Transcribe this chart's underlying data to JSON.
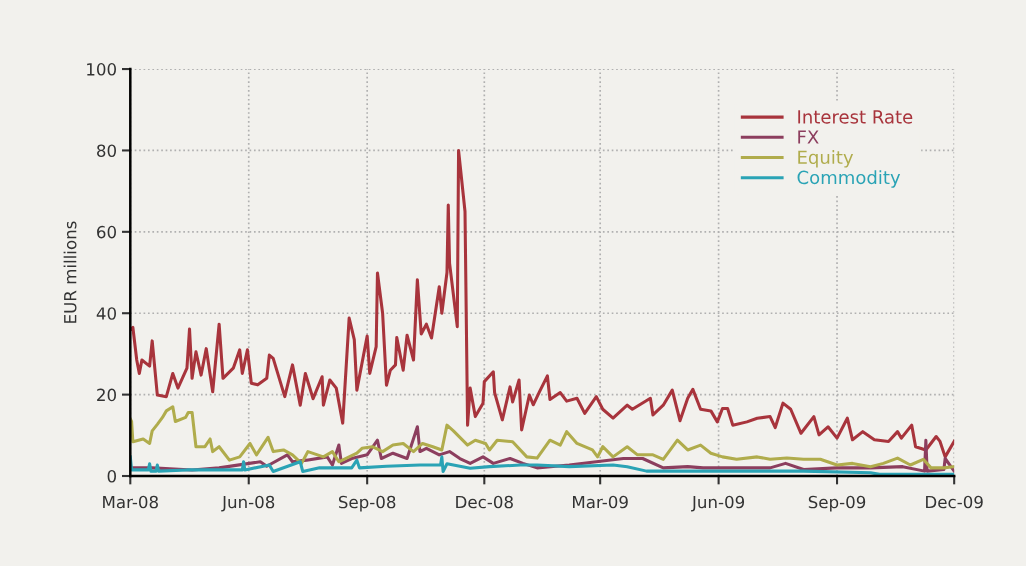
{
  "chart_data": {
    "type": "line",
    "ylabel": "EUR millions",
    "xlim": [
      "2008-03-01",
      "2009-12-01"
    ],
    "xticks": [
      {
        "value": "2008-03-01",
        "label": "Mar-08"
      },
      {
        "value": "2008-06-01",
        "label": "Jun-08"
      },
      {
        "value": "2008-09-01",
        "label": "Sep-08"
      },
      {
        "value": "2008-12-01",
        "label": "Dec-08"
      },
      {
        "value": "2009-03-01",
        "label": "Mar-09"
      },
      {
        "value": "2009-06-01",
        "label": "Jun-09"
      },
      {
        "value": "2009-09-01",
        "label": "Sep-09"
      },
      {
        "value": "2009-12-01",
        "label": "Dec-09"
      }
    ],
    "ylim": [
      0,
      100
    ],
    "yticks": [
      0,
      20,
      40,
      60,
      80,
      100
    ],
    "grid": true,
    "legend": "top right",
    "marker": "none",
    "line_style": "solid",
    "series": [
      {
        "name": "Interest Rate",
        "color": "#a8343c",
        "x": [
          "2008-03-01",
          "2008-03-03",
          "2008-03-06",
          "2008-03-08",
          "2008-03-10",
          "2008-03-16",
          "2008-03-18",
          "2008-03-22",
          "2008-03-29",
          "2008-04-03",
          "2008-04-07",
          "2008-04-14",
          "2008-04-16",
          "2008-04-18",
          "2008-04-21",
          "2008-04-25",
          "2008-04-29",
          "2008-05-04",
          "2008-05-09",
          "2008-05-12",
          "2008-05-20",
          "2008-05-25",
          "2008-05-27",
          "2008-05-31",
          "2008-06-03",
          "2008-06-08",
          "2008-06-15",
          "2008-06-17",
          "2008-06-20",
          "2008-06-29",
          "2008-07-05",
          "2008-07-11",
          "2008-07-15",
          "2008-07-21",
          "2008-07-28",
          "2008-07-29",
          "2008-08-03",
          "2008-08-08",
          "2008-08-13",
          "2008-08-18",
          "2008-08-22",
          "2008-08-24",
          "2008-09-01",
          "2008-09-03",
          "2008-09-08",
          "2008-09-09",
          "2008-09-13",
          "2008-09-16",
          "2008-09-19",
          "2008-09-23",
          "2008-09-24",
          "2008-09-29",
          "2008-10-02",
          "2008-10-07",
          "2008-10-10",
          "2008-10-13",
          "2008-10-17",
          "2008-10-21",
          "2008-10-27",
          "2008-10-29",
          "2008-11-02",
          "2008-11-03",
          "2008-11-04",
          "2008-11-10",
          "2008-11-11",
          "2008-11-16",
          "2008-11-18",
          "2008-11-20",
          "2008-11-24",
          "2008-11-30",
          "2008-12-01",
          "2008-12-08",
          "2008-12-09",
          "2008-12-15",
          "2008-12-21",
          "2008-12-23",
          "2008-12-28",
          "2008-12-30",
          "2009-01-05",
          "2009-01-08",
          "2009-01-13",
          "2009-01-19",
          "2009-01-21",
          "2009-01-29",
          "2009-02-03",
          "2009-02-11",
          "2009-02-17",
          "2009-02-26",
          "2009-03-03",
          "2009-03-11",
          "2009-03-22",
          "2009-03-26",
          "2009-04-09",
          "2009-04-11",
          "2009-04-19",
          "2009-04-26",
          "2009-05-02",
          "2009-05-08",
          "2009-05-12",
          "2009-05-18",
          "2009-05-26",
          "2009-05-31",
          "2009-06-04",
          "2009-06-08",
          "2009-06-12",
          "2009-06-23",
          "2009-07-01",
          "2009-07-11",
          "2009-07-15",
          "2009-07-21",
          "2009-07-27",
          "2009-08-04",
          "2009-08-14",
          "2009-08-18",
          "2009-08-25",
          "2009-09-01",
          "2009-09-09",
          "2009-09-13",
          "2009-09-21",
          "2009-09-30",
          "2009-10-11",
          "2009-10-18",
          "2009-10-21",
          "2009-10-29",
          "2009-11-01",
          "2009-11-09",
          "2009-11-17",
          "2009-11-20",
          "2009-11-24",
          "2009-12-01"
        ],
        "values": [
          36,
          36.5,
          28.5,
          25.2,
          28.5,
          27,
          33.2,
          19.9,
          19.5,
          25.2,
          21.6,
          26.5,
          36.1,
          24,
          30.5,
          24.8,
          31.3,
          20.7,
          37.3,
          24,
          26.5,
          31,
          25.2,
          31,
          22.8,
          22.4,
          24,
          29.7,
          28.9,
          19.5,
          27.3,
          17.4,
          25.2,
          19,
          24.4,
          17.4,
          23.6,
          21.6,
          13,
          38.8,
          33.5,
          21.1,
          34.4,
          25.2,
          31.8,
          49.9,
          40,
          22.3,
          26,
          27.3,
          34,
          26,
          34.6,
          28.5,
          48.2,
          34.9,
          37.3,
          33.9,
          46.5,
          40,
          50,
          66.6,
          52.3,
          36.7,
          80,
          65,
          12.5,
          21.6,
          14.6,
          17.9,
          23.2,
          25.6,
          20.5,
          13.8,
          21.9,
          18.2,
          23.6,
          11.3,
          19.9,
          17.5,
          20.8,
          24.6,
          18.8,
          20.5,
          18.4,
          19.1,
          15.4,
          19.5,
          16.4,
          14.2,
          17.4,
          16.4,
          19.1,
          15,
          17.4,
          21.1,
          13.6,
          19.1,
          21.3,
          16.4,
          16,
          13.3,
          16.6,
          16.6,
          12.5,
          13.3,
          14.2,
          14.6,
          11.9,
          17.9,
          16.4,
          10.5,
          14.6,
          10.1,
          12.1,
          9.3,
          14.2,
          8.9,
          10.9,
          8.9,
          8.5,
          10.9,
          9.3,
          12.5,
          7.2,
          6.4,
          9.7,
          8.5,
          4.7,
          8.5
        ]
      },
      {
        "name": "FX",
        "color": "#8c3e5e",
        "x": [
          "2008-03-01",
          "2008-03-18",
          "2008-04-18",
          "2008-05-09",
          "2008-06-10",
          "2008-06-15",
          "2008-07-01",
          "2008-07-05",
          "2008-07-16",
          "2008-08-01",
          "2008-08-05",
          "2008-08-10",
          "2008-08-12",
          "2008-08-20",
          "2008-09-01",
          "2008-09-09",
          "2008-09-12",
          "2008-09-21",
          "2008-10-02",
          "2008-10-10",
          "2008-10-12",
          "2008-10-17",
          "2008-10-27",
          "2008-11-04",
          "2008-11-12",
          "2008-11-20",
          "2008-11-30",
          "2008-12-08",
          "2008-12-21",
          "2008-12-31",
          "2009-01-11",
          "2009-02-05",
          "2009-02-26",
          "2009-03-19",
          "2009-04-03",
          "2009-04-19",
          "2009-05-08",
          "2009-05-20",
          "2009-06-15",
          "2009-07-11",
          "2009-07-23",
          "2009-08-06",
          "2009-09-01",
          "2009-09-27",
          "2009-10-22",
          "2009-11-08",
          "2009-11-09",
          "2009-11-10",
          "2009-11-23",
          "2009-11-24",
          "2009-12-01"
        ],
        "values": [
          2,
          2,
          1.5,
          2,
          3.5,
          2.4,
          5.2,
          3.5,
          3.9,
          4.7,
          2.7,
          7.6,
          3.1,
          4.3,
          5.2,
          8.8,
          4.3,
          5.6,
          4.3,
          12.1,
          6,
          6.8,
          5.2,
          6,
          4.3,
          3.1,
          4.7,
          3.1,
          4.3,
          3.1,
          2,
          2.7,
          3.5,
          4.3,
          4.3,
          2,
          2.3,
          2,
          2,
          2,
          3.1,
          1.6,
          2,
          2,
          2.3,
          1.2,
          8.8,
          1.2,
          1.6,
          4.3,
          1.2
        ]
      },
      {
        "name": "Equity",
        "color": "#b0ac4c",
        "x": [
          "2008-03-01",
          "2008-03-02",
          "2008-03-03",
          "2008-03-11",
          "2008-03-16",
          "2008-03-18",
          "2008-03-22",
          "2008-03-26",
          "2008-03-29",
          "2008-04-03",
          "2008-04-05",
          "2008-04-13",
          "2008-04-15",
          "2008-04-18",
          "2008-04-21",
          "2008-04-28",
          "2008-05-02",
          "2008-05-04",
          "2008-05-09",
          "2008-05-17",
          "2008-05-25",
          "2008-06-02",
          "2008-06-07",
          "2008-06-16",
          "2008-06-20",
          "2008-06-28",
          "2008-07-05",
          "2008-07-12",
          "2008-07-17",
          "2008-07-29",
          "2008-08-05",
          "2008-08-10",
          "2008-08-24",
          "2008-08-28",
          "2008-09-05",
          "2008-09-13",
          "2008-09-21",
          "2008-09-29",
          "2008-10-07",
          "2008-10-14",
          "2008-10-22",
          "2008-10-29",
          "2008-11-02",
          "2008-11-07",
          "2008-11-18",
          "2008-11-24",
          "2008-12-02",
          "2008-12-05",
          "2008-12-11",
          "2008-12-23",
          "2009-01-03",
          "2009-01-11",
          "2009-01-21",
          "2009-01-29",
          "2009-02-03",
          "2009-02-11",
          "2009-02-23",
          "2009-02-27",
          "2009-03-03",
          "2009-03-11",
          "2009-03-22",
          "2009-03-30",
          "2009-04-11",
          "2009-04-19",
          "2009-04-30",
          "2009-05-08",
          "2009-05-18",
          "2009-05-26",
          "2009-06-04",
          "2009-06-15",
          "2009-07-01",
          "2009-07-11",
          "2009-07-24",
          "2009-08-06",
          "2009-08-19",
          "2009-09-01",
          "2009-09-13",
          "2009-09-27",
          "2009-10-07",
          "2009-10-18",
          "2009-10-28",
          "2009-11-07",
          "2009-11-13",
          "2009-11-23",
          "2009-12-01"
        ],
        "values": [
          14,
          13.4,
          8.4,
          9.1,
          8,
          11.1,
          12.7,
          14.4,
          16,
          17,
          13.4,
          14.4,
          15.6,
          15.6,
          7.2,
          7.2,
          9.1,
          6,
          7.2,
          3.9,
          4.7,
          8,
          5.2,
          9.5,
          6,
          6.4,
          5.2,
          3.1,
          6,
          4.7,
          6,
          3.5,
          5.6,
          6.8,
          7.2,
          6,
          7.6,
          8,
          6,
          8,
          7.2,
          6.4,
          12.5,
          11.1,
          7.6,
          8.8,
          8,
          6.4,
          8.8,
          8.4,
          4.7,
          4.4,
          8.8,
          7.6,
          10.9,
          8,
          6.4,
          4.7,
          7.2,
          4.7,
          7.2,
          5.2,
          5.2,
          4.1,
          8.8,
          6.4,
          7.6,
          5.6,
          4.7,
          4.1,
          4.7,
          4.1,
          4.4,
          4.1,
          4.1,
          2.7,
          3.1,
          2.3,
          3.1,
          4.4,
          2.7,
          4.1,
          2,
          2,
          2.3
        ]
      },
      {
        "name": "Commodity",
        "color": "#2aa3b5",
        "x": [
          "2008-03-01",
          "2008-03-02",
          "2008-03-15",
          "2008-03-16",
          "2008-03-17",
          "2008-03-21",
          "2008-03-22",
          "2008-03-23",
          "2008-04-14",
          "2008-05-09",
          "2008-05-27",
          "2008-05-28",
          "2008-05-29",
          "2008-06-17",
          "2008-06-20",
          "2008-07-11",
          "2008-07-13",
          "2008-07-26",
          "2008-08-20",
          "2008-08-24",
          "2008-08-26",
          "2008-09-16",
          "2008-10-12",
          "2008-10-28",
          "2008-10-29",
          "2008-10-30",
          "2008-11-02",
          "2008-11-20",
          "2008-12-05",
          "2008-12-29",
          "2009-01-11",
          "2009-02-05",
          "2009-03-11",
          "2009-03-22",
          "2009-04-06",
          "2009-06-15",
          "2009-08-06",
          "2009-09-27",
          "2009-10-04",
          "2009-12-01"
        ],
        "values": [
          4.7,
          1.5,
          1.5,
          3,
          1.2,
          1.2,
          2.7,
          1.2,
          1.5,
          1.5,
          1.5,
          3.5,
          1.5,
          2.7,
          1.1,
          3.5,
          1.1,
          2,
          2,
          3.9,
          2,
          2.4,
          2.7,
          2.7,
          4.7,
          1.1,
          3,
          1.9,
          2.3,
          2.7,
          2.7,
          2.3,
          2.7,
          2.3,
          1.2,
          1.2,
          1.2,
          0.8,
          0.4,
          0.4
        ]
      }
    ]
  }
}
